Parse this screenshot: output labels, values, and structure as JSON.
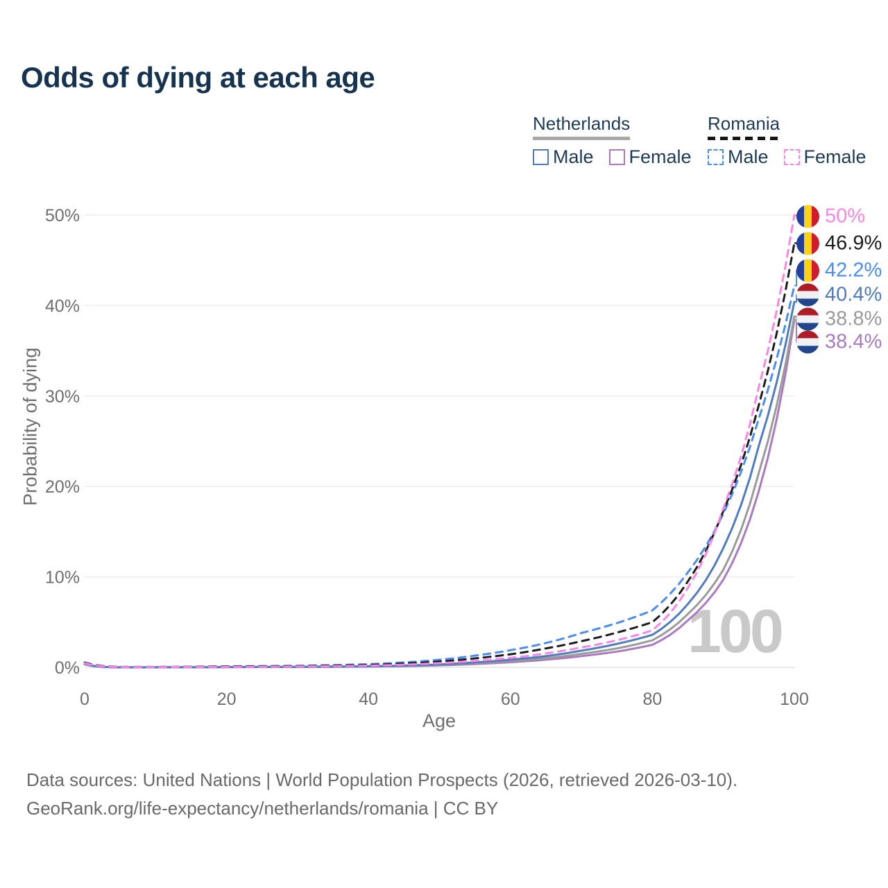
{
  "title": "Odds of dying at each age",
  "watermark": "100",
  "legend": {
    "groups": [
      {
        "name": "Netherlands",
        "line_style": "solid",
        "line_color": "#a8a8a8",
        "items": [
          {
            "label": "Male",
            "color": "#4e7cbe",
            "dash": false
          },
          {
            "label": "Female",
            "color": "#ab79c2",
            "dash": false
          }
        ]
      },
      {
        "name": "Romania",
        "line_style": "dashed",
        "line_color": "#151515",
        "items": [
          {
            "label": "Male",
            "color": "#4a8cf0",
            "dash": true
          },
          {
            "label": "Female",
            "color": "#f985e5",
            "dash": true
          }
        ]
      }
    ]
  },
  "axes": {
    "x_label": "Age",
    "y_label": "Probability of dying"
  },
  "flags": {
    "ro": {
      "blue": "#223f9a",
      "yellow": "#fcd116",
      "red": "#d01c2f"
    },
    "nl": {
      "red": "#ae1c28",
      "white": "#eef0f3",
      "blue": "#21468b"
    }
  },
  "footer": {
    "line1": "Data sources: United Nations | World Population Prospects (2026, retrieved 2026-03-10).",
    "line2": "GeoRank.org/life-expectancy/netherlands/romania | CC BY"
  },
  "chart_data": {
    "type": "line",
    "title": "Odds of dying at each age",
    "xlabel": "Age",
    "ylabel": "Probability of dying",
    "x_range": [
      0,
      100
    ],
    "y_range_pct": [
      0,
      50
    ],
    "x_ticks": [
      0,
      20,
      40,
      60,
      80,
      100
    ],
    "y_ticks": [
      "0%",
      "10%",
      "20%",
      "30%",
      "40%",
      "50%"
    ],
    "grid": "horizontal",
    "legend_position": "top-right",
    "ages": [
      0,
      5,
      10,
      15,
      20,
      25,
      30,
      35,
      40,
      45,
      50,
      55,
      60,
      65,
      70,
      75,
      80,
      85,
      90,
      95,
      100
    ],
    "series": [
      {
        "name": "Romania Female",
        "country": "Romania",
        "sex": "Female",
        "flag": "ro",
        "style": "dashed",
        "color": "#f985e5",
        "end_label": "50%",
        "values": [
          0.45,
          0.03,
          0.03,
          0.04,
          0.05,
          0.07,
          0.09,
          0.13,
          0.19,
          0.3,
          0.47,
          0.72,
          1.05,
          1.55,
          2.2,
          3.0,
          4.1,
          8.8,
          17.6,
          31.0,
          50.0
        ]
      },
      {
        "name": "Romania Both sexes",
        "country": "Romania",
        "sex": "Both",
        "flag": "ro",
        "style": "dashed",
        "color": "#1c1c1c",
        "end_label": "46.9%",
        "values": [
          0.5,
          0.04,
          0.04,
          0.06,
          0.09,
          0.11,
          0.14,
          0.19,
          0.27,
          0.42,
          0.65,
          1.0,
          1.45,
          2.1,
          2.9,
          3.85,
          5.0,
          9.5,
          17.3,
          29.0,
          46.9
        ]
      },
      {
        "name": "Romania Male",
        "country": "Romania",
        "sex": "Male",
        "flag": "ro",
        "style": "dashed",
        "color": "#4a8cf0",
        "end_label": "42.2%",
        "values": [
          0.55,
          0.05,
          0.05,
          0.08,
          0.12,
          0.15,
          0.18,
          0.25,
          0.35,
          0.55,
          0.85,
          1.3,
          1.9,
          2.7,
          3.8,
          4.9,
          6.3,
          10.5,
          17.0,
          27.5,
          42.2
        ]
      },
      {
        "name": "Netherlands Male",
        "country": "Netherlands",
        "sex": "Male",
        "flag": "nl",
        "style": "solid",
        "color": "#4e7cbe",
        "end_label": "40.4%",
        "values": [
          0.4,
          0.01,
          0.01,
          0.02,
          0.04,
          0.05,
          0.06,
          0.09,
          0.13,
          0.2,
          0.33,
          0.55,
          0.85,
          1.25,
          1.85,
          2.6,
          3.6,
          7.0,
          13.2,
          24.5,
          40.4
        ]
      },
      {
        "name": "Netherlands Both sexes",
        "country": "Netherlands",
        "sex": "Both",
        "flag": "nl",
        "style": "solid",
        "color": "#9a9a9a",
        "end_label": "38.8%",
        "values": [
          0.37,
          0.01,
          0.01,
          0.02,
          0.03,
          0.04,
          0.05,
          0.07,
          0.11,
          0.17,
          0.27,
          0.45,
          0.7,
          1.02,
          1.5,
          2.1,
          3.0,
          5.9,
          10.8,
          21.5,
          38.8
        ]
      },
      {
        "name": "Netherlands Female",
        "country": "Netherlands",
        "sex": "Female",
        "flag": "nl",
        "style": "solid",
        "color": "#ab79c2",
        "end_label": "38.4%",
        "values": [
          0.33,
          0.01,
          0.01,
          0.015,
          0.025,
          0.035,
          0.045,
          0.06,
          0.09,
          0.14,
          0.22,
          0.37,
          0.57,
          0.85,
          1.25,
          1.75,
          2.5,
          5.2,
          9.7,
          19.5,
          38.4
        ]
      }
    ]
  }
}
